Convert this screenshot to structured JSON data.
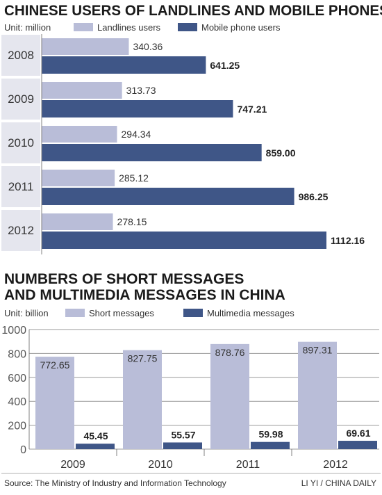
{
  "colors": {
    "landline": "#b9bdd8",
    "mobile": "#3f5687",
    "axis": "#808080",
    "band": "#e5e6ee"
  },
  "chart_data": [
    {
      "type": "bar",
      "orientation": "horizontal",
      "title": "CHINESE USERS OF LANDLINES AND MOBILE PHONES",
      "unit": "Unit: million",
      "categories": [
        "2008",
        "2009",
        "2010",
        "2011",
        "2012"
      ],
      "series": [
        {
          "name": "Landlines users",
          "values": [
            340.36,
            313.73,
            294.34,
            285.12,
            278.15
          ],
          "labels": [
            "340.36",
            "313.73",
            "294.34",
            "285.12",
            "278.15"
          ]
        },
        {
          "name": "Mobile phone users",
          "values": [
            641.25,
            747.21,
            859.0,
            986.25,
            1112.16
          ],
          "labels": [
            "641.25",
            "747.21",
            "859.00",
            "986.25",
            "1112.16"
          ]
        }
      ],
      "xlim": [
        0,
        1112.16
      ],
      "legend": "top"
    },
    {
      "type": "bar",
      "orientation": "vertical",
      "title_lines": [
        "NUMBERS OF SHORT MESSAGES",
        "AND MULTIMEDIA MESSAGES IN CHINA"
      ],
      "unit": "Unit: billion",
      "categories": [
        "2009",
        "2010",
        "2011",
        "2012"
      ],
      "series": [
        {
          "name": "Short messages",
          "values": [
            772.65,
            827.75,
            878.76,
            897.31
          ],
          "labels": [
            "772.65",
            "827.75",
            "878.76",
            "897.31"
          ]
        },
        {
          "name": "Multimedia messages",
          "values": [
            45.45,
            55.57,
            59.98,
            69.61
          ],
          "labels": [
            "45.45",
            "55.57",
            "59.98",
            "69.61"
          ]
        }
      ],
      "ylim": [
        0,
        1000
      ],
      "yticks": [
        "0",
        "200",
        "400",
        "600",
        "800",
        "1000"
      ],
      "legend": "top"
    }
  ],
  "footer": {
    "source": "Source: The Ministry of Industry and Information Technology",
    "credit": "LI YI / CHINA DAILY"
  }
}
